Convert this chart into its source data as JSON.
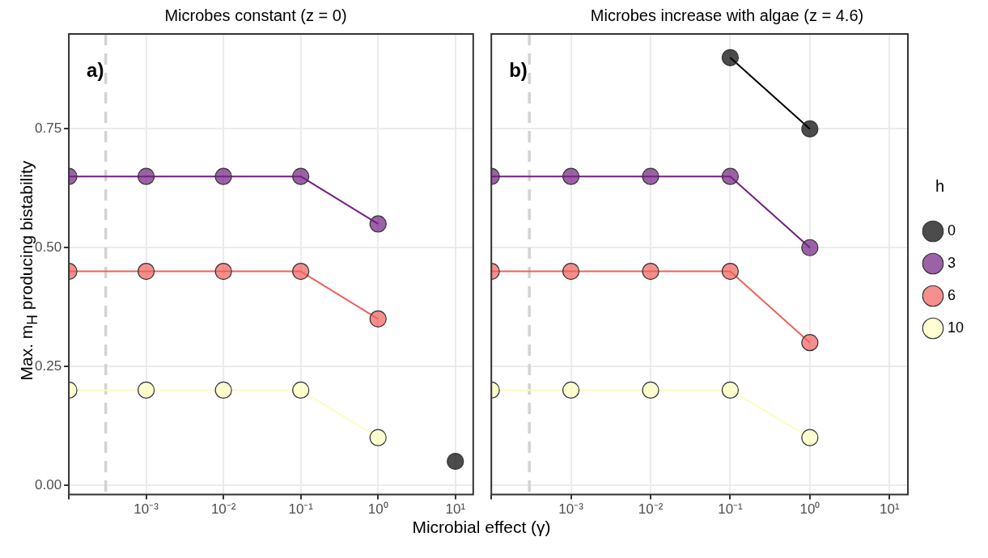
{
  "chart_data": [
    {
      "type": "line",
      "title": "Microbes constant (z = 0)",
      "xlabel": "Microbial effect (γ)",
      "ylabel": "Max. m$_{H}$ producing bistability",
      "annotations": [
        "a)"
      ],
      "x": [
        0.0001,
        0.001,
        0.01,
        0.1,
        1,
        10
      ],
      "series": [
        {
          "color": "#000000",
          "values": [
            null,
            null,
            null,
            null,
            null,
            0.05
          ]
        },
        {
          "color": "#721f81",
          "values": [
            0.65,
            0.65,
            0.65,
            0.65,
            0.55,
            null
          ]
        },
        {
          "color": "#f1605d",
          "values": [
            0.45,
            0.45,
            0.45,
            0.45,
            0.35,
            null
          ]
        },
        {
          "color": "#fcfdbf",
          "values": [
            0.2,
            0.2,
            0.2,
            0.2,
            0.1,
            null
          ]
        }
      ],
      "xlim": [
        0.0001,
        17
      ],
      "ylim": [
        -0.02,
        0.95
      ],
      "xticks": [
        {
          "value": 0.0001,
          "label": null
        },
        {
          "value": 0.001,
          "label": "10⁻³"
        },
        {
          "value": 0.01,
          "label": "10⁻²"
        },
        {
          "value": 0.1,
          "label": "10⁻¹"
        },
        {
          "value": 1,
          "label": "10⁰"
        },
        {
          "value": 10,
          "label": "10¹"
        }
      ],
      "yticks": [
        {
          "value": 0,
          "label": "0.00"
        },
        {
          "value": 0.25,
          "label": "0.25"
        },
        {
          "value": 0.5,
          "label": "0.50"
        },
        {
          "value": 0.75,
          "label": "0.75"
        }
      ],
      "log": "x",
      "grid": true,
      "marker": "circle",
      "ref_lines": [
        {
          "axis": "x",
          "value": 0.0003,
          "color": "#d3d3d3",
          "line_style": "dashed"
        }
      ]
    },
    {
      "type": "line",
      "title": "Microbes increase with algae (z = 4.6)",
      "annotations": [
        "b)"
      ],
      "legend_title": "h",
      "x": [
        0.0001,
        0.001,
        0.01,
        0.1,
        1
      ],
      "series": [
        {
          "name": "0",
          "color": "#000000",
          "values": [
            null,
            null,
            null,
            0.9,
            0.75
          ]
        },
        {
          "name": "3",
          "color": "#721f81",
          "values": [
            0.65,
            0.65,
            0.65,
            0.65,
            0.5
          ]
        },
        {
          "name": "6",
          "color": "#f1605d",
          "values": [
            0.45,
            0.45,
            0.45,
            0.45,
            0.3
          ]
        },
        {
          "name": "10",
          "color": "#fcfdbf",
          "values": [
            0.2,
            0.2,
            0.2,
            0.2,
            0.1
          ]
        }
      ],
      "xlim": [
        0.0001,
        17
      ],
      "ylim": [
        -0.02,
        0.95
      ],
      "xticks": [
        {
          "value": 0.0001,
          "label": null
        },
        {
          "value": 0.001,
          "label": "10⁻³"
        },
        {
          "value": 0.01,
          "label": "10⁻²"
        },
        {
          "value": 0.1,
          "label": "10⁻¹"
        },
        {
          "value": 1,
          "label": "10⁰"
        },
        {
          "value": 10,
          "label": "10¹"
        }
      ],
      "yticks": [
        0,
        0.25,
        0.5,
        0.75
      ],
      "log": "x",
      "grid": true,
      "marker": "circle",
      "legend": "right",
      "tick_labels": "x",
      "ref_lines": [
        {
          "axis": "x",
          "value": 0.0003,
          "color": "#d3d3d3",
          "line_style": "dashed"
        }
      ]
    }
  ]
}
